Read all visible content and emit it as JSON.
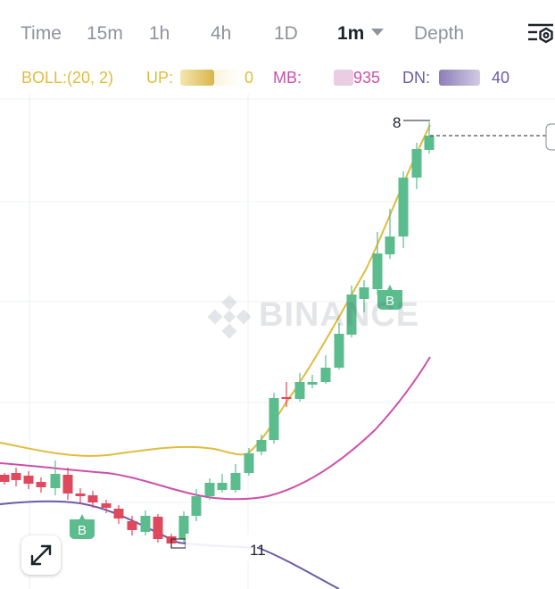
{
  "tabs": [
    {
      "label": "Time",
      "active": false
    },
    {
      "label": "15m",
      "active": false
    },
    {
      "label": "1h",
      "active": false
    },
    {
      "label": "4h",
      "active": false
    },
    {
      "label": "1D",
      "active": false
    },
    {
      "label": "1m",
      "active": true
    },
    {
      "label": "Depth",
      "active": false
    }
  ],
  "indicator": {
    "name": "BOLL:(20, 2)",
    "up_label": "UP:",
    "up_value": "0",
    "mb_label": "MB:",
    "mb_value": "935",
    "dn_label": "DN:",
    "dn_value": "40"
  },
  "colors": {
    "up_candle": "#5bbc8e",
    "down_candle": "#e0485d",
    "boll_up": "#e0bc3e",
    "boll_mb": "#cc50aa",
    "boll_dn": "#6c5ba6",
    "tab_inactive": "#8f939c",
    "tab_active": "#1e2329"
  },
  "chart": {
    "high_label": "8",
    "bottom_label": "11",
    "markers": [
      {
        "label": "B"
      },
      {
        "label": "B"
      }
    ]
  },
  "watermark": {
    "text": "BINANCE"
  }
}
